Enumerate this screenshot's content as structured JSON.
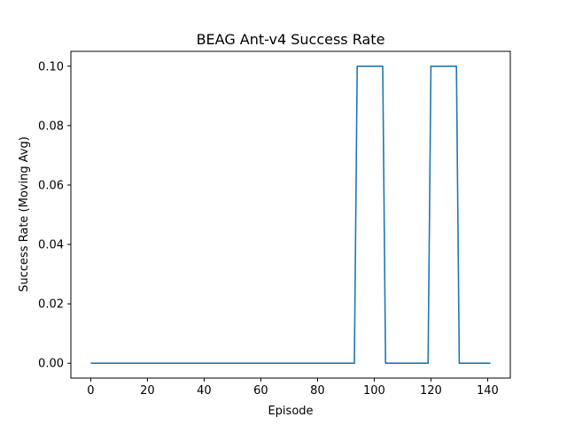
{
  "chart_data": {
    "type": "line",
    "title": "BEAG Ant-v4 Success Rate",
    "xlabel": "Episode",
    "ylabel": "Success Rate (Moving Avg)",
    "xlim": [
      -7,
      148
    ],
    "ylim": [
      -0.005,
      0.105
    ],
    "xticks": [
      0,
      20,
      40,
      60,
      80,
      100,
      120,
      140
    ],
    "yticks": [
      "0.00",
      "0.02",
      "0.04",
      "0.06",
      "0.08",
      "0.10"
    ],
    "grid": false,
    "line_color": "#1f77b4",
    "series": [
      {
        "x": [
          0,
          93,
          94,
          103,
          104,
          119,
          120,
          129,
          130,
          141
        ],
        "values": [
          0,
          0,
          0.1,
          0.1,
          0,
          0,
          0.1,
          0.1,
          0,
          0
        ]
      }
    ]
  }
}
